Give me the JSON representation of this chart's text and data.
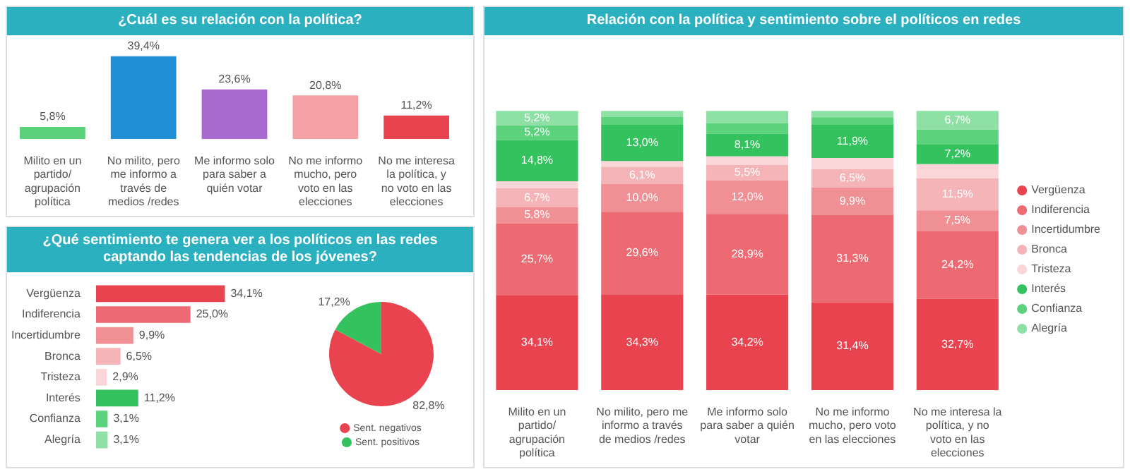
{
  "chart_data": [
    {
      "type": "bar",
      "title": "¿Cuál es su relación con la política?",
      "categories": [
        "Milito en un partido/ agrupación política",
        "No milito, pero me informo a través de medios /redes",
        "Me informo solo para saber a quién votar",
        "No me informo mucho, pero voto en las elecciones",
        "No me interesa la política, y no voto en las elecciones"
      ],
      "values": [
        5.8,
        39.4,
        23.6,
        20.8,
        11.2
      ],
      "colors": [
        "#5ad17a",
        "#1f90d8",
        "#a86ad0",
        "#f5a0a4",
        "#e8434f"
      ],
      "value_labels": [
        "5,8%",
        "39,4%",
        "23,6%",
        "20,8%",
        "11,2%"
      ],
      "tick_labels": "x"
    },
    {
      "type": "bar",
      "orientation": "horizontal",
      "title": "¿Qué sentimiento te genera ver a los políticos en las redes captando las tendencias de los jóvenes?",
      "categories": [
        "Vergüenza",
        "Indiferencia",
        "Incertidumbre",
        "Bronca",
        "Tristeza",
        "Interés",
        "Confianza",
        "Alegría"
      ],
      "values": [
        34.1,
        25.0,
        9.9,
        6.5,
        2.9,
        11.2,
        3.1,
        3.1
      ],
      "colors": [
        "#e8434f",
        "#ee6a72",
        "#f08f94",
        "#f5b5b8",
        "#fad6d8",
        "#33c25e",
        "#5dd27d",
        "#8fe0a5"
      ],
      "value_labels": [
        "34,1%",
        "25,0%",
        "9,9%",
        "6,5%",
        "2,9%",
        "11,2%",
        "3,1%",
        "3,1%"
      ],
      "tick_labels": "y"
    },
    {
      "type": "pie",
      "categories": [
        "Sent. negativos",
        "Sent. positivos"
      ],
      "values": [
        82.8,
        17.2
      ],
      "colors": [
        "#e8434f",
        "#33c25e"
      ],
      "value_labels": [
        "82,8%",
        "17,2%"
      ],
      "legend": "bottom"
    },
    {
      "type": "bar",
      "stacked": true,
      "title": "Relación con la política y sentimiento sobre el políticos en redes",
      "categories": [
        "Milito en un partido/ agrupación política",
        "No milito, pero me informo a través de medios /redes",
        "Me informo solo para saber a quién votar",
        "No me informo mucho, pero voto en las elecciones",
        "No me interesa la política, y no voto en las elecciones"
      ],
      "tick_labels": "x",
      "legend": "right",
      "series": [
        {
          "name": "Vergüenza",
          "color": "#e8434f",
          "values": [
            34.1,
            34.3,
            34.2,
            31.4,
            32.7
          ],
          "value_labels": [
            "34,1%",
            "34,3%",
            "34,2%",
            "31,4%",
            "32,7%"
          ]
        },
        {
          "name": "Indiferencia",
          "color": "#ee6a72",
          "values": [
            25.7,
            29.6,
            28.9,
            31.3,
            24.2
          ],
          "value_labels": [
            "25,7%",
            "29,6%",
            "28,9%",
            "31,3%",
            "24,2%"
          ]
        },
        {
          "name": "Incertidumbre",
          "color": "#f08f94",
          "values": [
            5.8,
            10.0,
            12.0,
            9.9,
            7.5
          ],
          "value_labels": [
            "5,8%",
            "10,0%",
            "12,0%",
            "9,9%",
            "7,5%"
          ]
        },
        {
          "name": "Bronca",
          "color": "#f5b5b8",
          "values": [
            6.7,
            6.1,
            5.5,
            6.5,
            11.5
          ],
          "value_labels": [
            "6,7%",
            "6,1%",
            "5,5%",
            "6,5%",
            "11,5%"
          ]
        },
        {
          "name": "Tristeza",
          "color": "#fad6d8",
          "values": [
            2.5,
            2.0,
            3.1,
            4.0,
            5.0
          ],
          "value_labels": [
            null,
            null,
            null,
            null,
            null
          ]
        },
        {
          "name": "Interés",
          "color": "#33c25e",
          "values": [
            14.8,
            13.0,
            8.1,
            11.9,
            7.2
          ],
          "value_labels": [
            "14,8%",
            "13,0%",
            "8,1%",
            "11,9%",
            "7,2%"
          ]
        },
        {
          "name": "Confianza",
          "color": "#5dd27d",
          "values": [
            5.2,
            2.8,
            3.7,
            2.7,
            5.2
          ],
          "value_labels": [
            "5,2%",
            null,
            null,
            null,
            null
          ]
        },
        {
          "name": "Alegría",
          "color": "#8fe0a5",
          "values": [
            5.2,
            2.2,
            4.5,
            2.3,
            6.7
          ],
          "value_labels": [
            "5,2%",
            null,
            null,
            null,
            "6,7%"
          ]
        }
      ]
    }
  ]
}
